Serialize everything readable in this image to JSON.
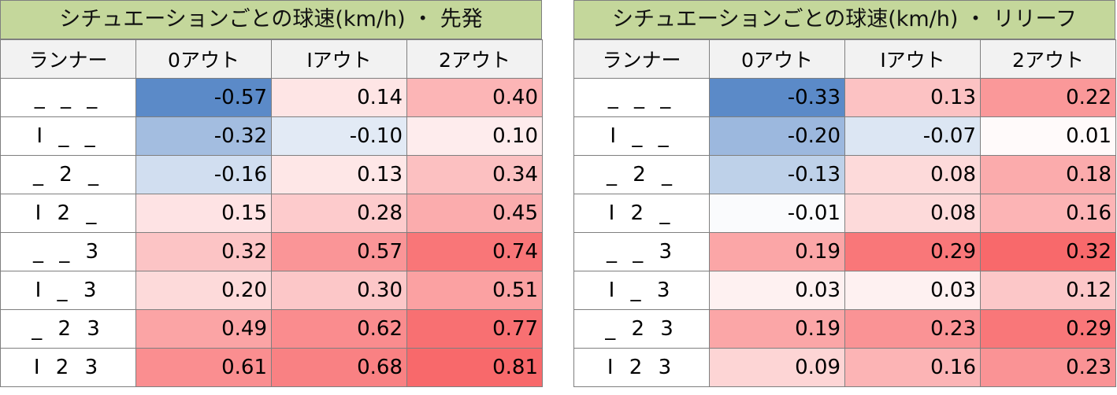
{
  "columns": [
    "ランナー",
    "0アウト",
    "Iアウト",
    "2アウト"
  ],
  "runners": [
    "_ _ _",
    "I _ _",
    "_ 2 _",
    "I 2 _",
    "_ _ 3",
    "I _ 3",
    "_ 2 3",
    "I 2 3"
  ],
  "colors": {
    "title_bg": "#c4d79b",
    "header_bg": "#f2f2f2",
    "negative": "#5b8ac8",
    "positive": "#f8696b"
  },
  "tables": [
    {
      "title": "シチュエーションごとの球速(km/h) ・ 先発",
      "rows": [
        [
          "-0.57",
          "0.14",
          "0.40"
        ],
        [
          "-0.32",
          "-0.10",
          "0.10"
        ],
        [
          "-0.16",
          "0.13",
          "0.34"
        ],
        [
          "0.15",
          "0.28",
          "0.45"
        ],
        [
          "0.32",
          "0.57",
          "0.74"
        ],
        [
          "0.20",
          "0.30",
          "0.51"
        ],
        [
          "0.49",
          "0.62",
          "0.77"
        ],
        [
          "0.61",
          "0.68",
          "0.81"
        ]
      ]
    },
    {
      "title": "シチュエーションごとの球速(km/h) ・ リリーフ",
      "rows": [
        [
          "-0.33",
          "0.13",
          "0.22"
        ],
        [
          "-0.20",
          "-0.07",
          "0.01"
        ],
        [
          "-0.13",
          "0.08",
          "0.18"
        ],
        [
          "-0.01",
          "0.08",
          "0.16"
        ],
        [
          "0.19",
          "0.29",
          "0.32"
        ],
        [
          "0.03",
          "0.03",
          "0.12"
        ],
        [
          "0.19",
          "0.23",
          "0.29"
        ],
        [
          "0.09",
          "0.16",
          "0.23"
        ]
      ]
    }
  ]
}
